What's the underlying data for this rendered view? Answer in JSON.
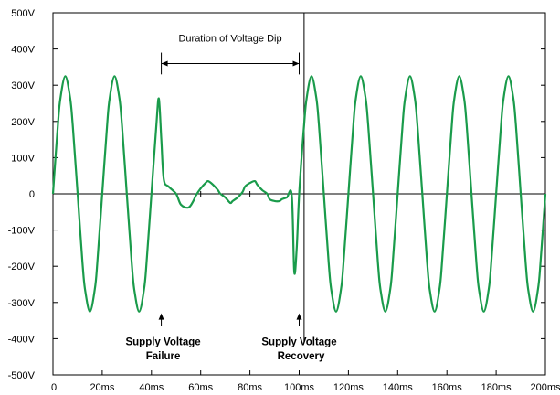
{
  "chart_data": {
    "type": "line",
    "title": "",
    "xlabel": "",
    "ylabel": "",
    "xlim": [
      0,
      200
    ],
    "ylim": [
      -500,
      500
    ],
    "grid": false,
    "x_ticks": [
      0,
      20,
      40,
      60,
      80,
      100,
      120,
      140,
      160,
      180,
      200
    ],
    "x_tick_labels": [
      "0",
      "20ms",
      "40ms",
      "60ms",
      "80ms",
      "100ms",
      "120ms",
      "140ms",
      "160ms",
      "180ms",
      "200ms"
    ],
    "y_ticks": [
      500,
      400,
      300,
      200,
      100,
      0,
      -100,
      -200,
      -300,
      -400,
      -500
    ],
    "y_tick_labels": [
      "500V",
      "400V",
      "300V",
      "200V",
      "100V",
      "0",
      "-100V",
      "-200V",
      "-300V",
      "-400V",
      "-500V"
    ],
    "series_color": "#1a9b4b",
    "series": [
      {
        "x": [
          0,
          2,
          3,
          5,
          7,
          8,
          10,
          12,
          13,
          15,
          17,
          18,
          20,
          22,
          23,
          25,
          27,
          28,
          30,
          32,
          33,
          35,
          37,
          38,
          40,
          42,
          43,
          44,
          45,
          47,
          50,
          52,
          55,
          57,
          58,
          60,
          62,
          63,
          65,
          67,
          68,
          70,
          72,
          73,
          75,
          77,
          78,
          80,
          82,
          83,
          85,
          87,
          88,
          90,
          92,
          93,
          95,
          97,
          98,
          99,
          100,
          102,
          103,
          105,
          107,
          108,
          110,
          112,
          113,
          115,
          117,
          118,
          120,
          122,
          123,
          125,
          127,
          128,
          130,
          132,
          133,
          135,
          137,
          138,
          140,
          142,
          143,
          145,
          147,
          148,
          150,
          152,
          153,
          155,
          157,
          158,
          160,
          162,
          163,
          165,
          167,
          168,
          170,
          172,
          173,
          175,
          177,
          178,
          180,
          182,
          183,
          185,
          187,
          188,
          190,
          192,
          193,
          195,
          197,
          198,
          200
        ],
        "y": [
          0,
          191,
          263,
          325,
          263,
          191,
          0,
          -191,
          -263,
          -325,
          -263,
          -191,
          0,
          191,
          263,
          325,
          263,
          191,
          0,
          -191,
          -263,
          -325,
          -263,
          -191,
          0,
          191,
          263,
          150,
          40,
          20,
          0,
          -30,
          -38,
          -20,
          -5,
          15,
          30,
          35,
          25,
          10,
          0,
          -10,
          -25,
          -20,
          -10,
          5,
          20,
          30,
          35,
          25,
          10,
          0,
          -15,
          -20,
          -20,
          -15,
          -10,
          -5,
          -215,
          -150,
          0,
          191,
          263,
          325,
          263,
          191,
          0,
          -191,
          -263,
          -325,
          -263,
          -191,
          0,
          191,
          263,
          325,
          263,
          191,
          0,
          -191,
          -263,
          -325,
          -263,
          -191,
          0,
          191,
          263,
          325,
          263,
          191,
          0,
          -191,
          -263,
          -325,
          -263,
          -191,
          0,
          191,
          263,
          325,
          263,
          191,
          0,
          -191,
          -263,
          -325,
          -263,
          -191,
          0,
          191,
          263,
          325,
          263,
          191,
          0,
          -191,
          -263,
          -325,
          -263,
          -191,
          0
        ]
      }
    ],
    "annotations": {
      "dip_label": "Duration of Voltage Dip",
      "dip_start": 44,
      "dip_end": 100,
      "failure": {
        "x": 44,
        "line1": "Supply Voltage",
        "line2": "Failure"
      },
      "recovery": {
        "x": 100,
        "line1": "Supply Voltage",
        "line2": "Recovery"
      },
      "recovery_marker_x": 102
    }
  }
}
